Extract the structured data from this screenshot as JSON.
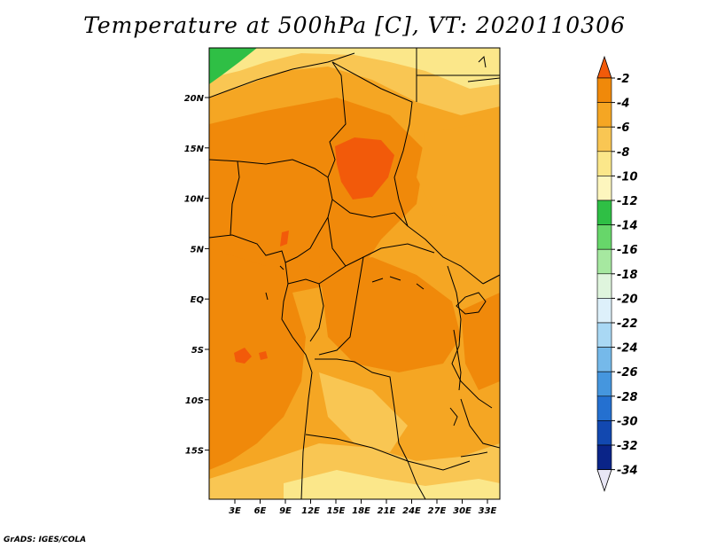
{
  "title": "Temperature at 500hPa [C], VT: 2020110306",
  "credit": "GrADS: IGES/COLA",
  "lat_labels": [
    "20N",
    "15N",
    "10N",
    "5N",
    "EQ",
    "5S",
    "10S",
    "15S"
  ],
  "lon_labels": [
    "3E",
    "6E",
    "9E",
    "12E",
    "15E",
    "18E",
    "21E",
    "24E",
    "27E",
    "30E",
    "33E"
  ],
  "colorbar": {
    "labels": [
      "-2",
      "-4",
      "-6",
      "-8",
      "-10",
      "-12",
      "-14",
      "-16",
      "-18",
      "-20",
      "-22",
      "-24",
      "-26",
      "-28",
      "-30",
      "-32",
      "-34"
    ],
    "colors": [
      "#f25a0a",
      "#f0890a",
      "#f5a623",
      "#f9c653",
      "#fbe78a",
      "#fdf6be",
      "#2fbf45",
      "#67d66a",
      "#a6e8a0",
      "#dff5dd",
      "#ddf0fa",
      "#a9d8f4",
      "#75b9ea",
      "#4596de",
      "#2470d0",
      "#1248b0",
      "#0a2488",
      "#050f5e"
    ]
  }
}
